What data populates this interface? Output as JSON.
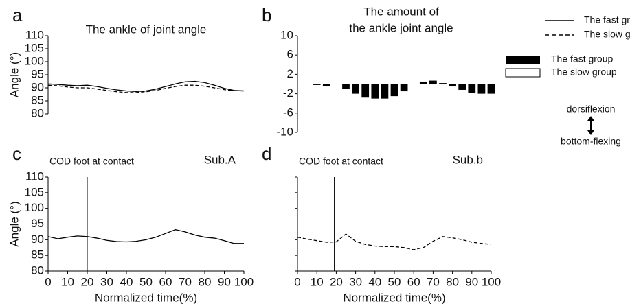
{
  "chart_data": [
    {
      "type": "line",
      "label": "a",
      "title": "The ankle of joint angle",
      "ylabel": "Angle (°)",
      "x": [
        0,
        5,
        10,
        15,
        20,
        25,
        30,
        35,
        40,
        45,
        50,
        55,
        60,
        65,
        70,
        75,
        80,
        85,
        90,
        95,
        100
      ],
      "xlim": [
        0,
        100
      ],
      "ylim": [
        80,
        110
      ],
      "yticks": [
        80,
        85,
        90,
        95,
        100,
        105,
        110
      ],
      "series": [
        {
          "name": "The fast group",
          "color": "#000000",
          "dash": false,
          "values": [
            91.5,
            91.3,
            91,
            90.8,
            91,
            90.5,
            89.8,
            89.2,
            88.8,
            88.6,
            88.8,
            89.5,
            90.5,
            91.5,
            92.3,
            92.5,
            92,
            91,
            89.8,
            89,
            88.8
          ]
        },
        {
          "name": "The slow group",
          "color": "#000000",
          "dash": true,
          "values": [
            91,
            90.8,
            90.3,
            90,
            90,
            89.5,
            89,
            88.5,
            88.2,
            88.2,
            88.5,
            89,
            89.8,
            90.5,
            91,
            91,
            90.6,
            90,
            89.3,
            88.9,
            88.8
          ]
        }
      ]
    },
    {
      "type": "bar",
      "label": "b",
      "title_lines": [
        "The amount of",
        "the ankle joint angle"
      ],
      "x": [
        0,
        5,
        10,
        15,
        20,
        25,
        30,
        35,
        40,
        45,
        50,
        55,
        60,
        65,
        70,
        75,
        80,
        85,
        90,
        95,
        100
      ],
      "xlim": [
        0,
        100
      ],
      "ylim": [
        -10,
        10
      ],
      "yticks": [
        -10,
        -6,
        -2,
        2,
        6,
        10
      ],
      "series": [
        {
          "name": "The fast group",
          "color": "#000000",
          "values": [
            0,
            0,
            -0.2,
            -0.5,
            0,
            -1,
            -2,
            -2.8,
            -3,
            -3,
            -2.5,
            -1.5,
            0,
            0.5,
            0.7,
            0.2,
            -0.5,
            -1.2,
            -1.8,
            -2,
            -2
          ]
        }
      ]
    },
    {
      "type": "line",
      "label": "c",
      "annotation": "COD foot at contact",
      "subject": "Sub.A",
      "contact_x": 20,
      "ylabel": "Angle (°)",
      "xlabel": "Normalized time(%)",
      "x": [
        0,
        5,
        10,
        15,
        20,
        25,
        30,
        35,
        40,
        45,
        50,
        55,
        60,
        65,
        70,
        75,
        80,
        85,
        90,
        95,
        100
      ],
      "xlim": [
        0,
        100
      ],
      "xticks": [
        0,
        10,
        20,
        30,
        40,
        50,
        60,
        70,
        80,
        90,
        100
      ],
      "ylim": [
        80,
        110
      ],
      "yticks": [
        80,
        85,
        90,
        95,
        100,
        105,
        110
      ],
      "series": [
        {
          "name": "Sub.A",
          "color": "#000000",
          "dash": false,
          "values": [
            91,
            90.3,
            90.8,
            91.2,
            91,
            90.5,
            89.8,
            89.4,
            89.3,
            89.5,
            90,
            90.8,
            92,
            93.2,
            92.5,
            91.5,
            90.8,
            90.5,
            89.7,
            88.8,
            88.8
          ]
        }
      ]
    },
    {
      "type": "line",
      "label": "d",
      "annotation": "COD foot at contact",
      "subject": "Sub.b",
      "contact_x": 19,
      "xlabel": "Normalized time(%)",
      "x": [
        0,
        5,
        10,
        15,
        20,
        25,
        30,
        35,
        40,
        45,
        50,
        55,
        60,
        65,
        70,
        75,
        80,
        85,
        90,
        95,
        100
      ],
      "xlim": [
        0,
        100
      ],
      "xticks": [
        0,
        10,
        20,
        30,
        40,
        50,
        60,
        70,
        80,
        90,
        100
      ],
      "ylim": [
        80,
        110
      ],
      "yticks": [
        80,
        85,
        90,
        95,
        100,
        105,
        110
      ],
      "ytick_labels": false,
      "series": [
        {
          "name": "Sub.b",
          "color": "#000000",
          "dash": true,
          "values": [
            90.8,
            90.2,
            89.7,
            89.2,
            89.3,
            91.8,
            89.5,
            88.5,
            88,
            87.8,
            87.8,
            87.5,
            86.8,
            87.5,
            89.5,
            91,
            90.6,
            90,
            89.2,
            88.8,
            88.5
          ]
        }
      ]
    }
  ],
  "legend": {
    "lines": [
      "The fast group",
      "The slow group"
    ],
    "bars": [
      "The fast group",
      "The slow group"
    ]
  },
  "direction": {
    "top": "dorsiflexion",
    "bottom": "bottom-flexing"
  }
}
